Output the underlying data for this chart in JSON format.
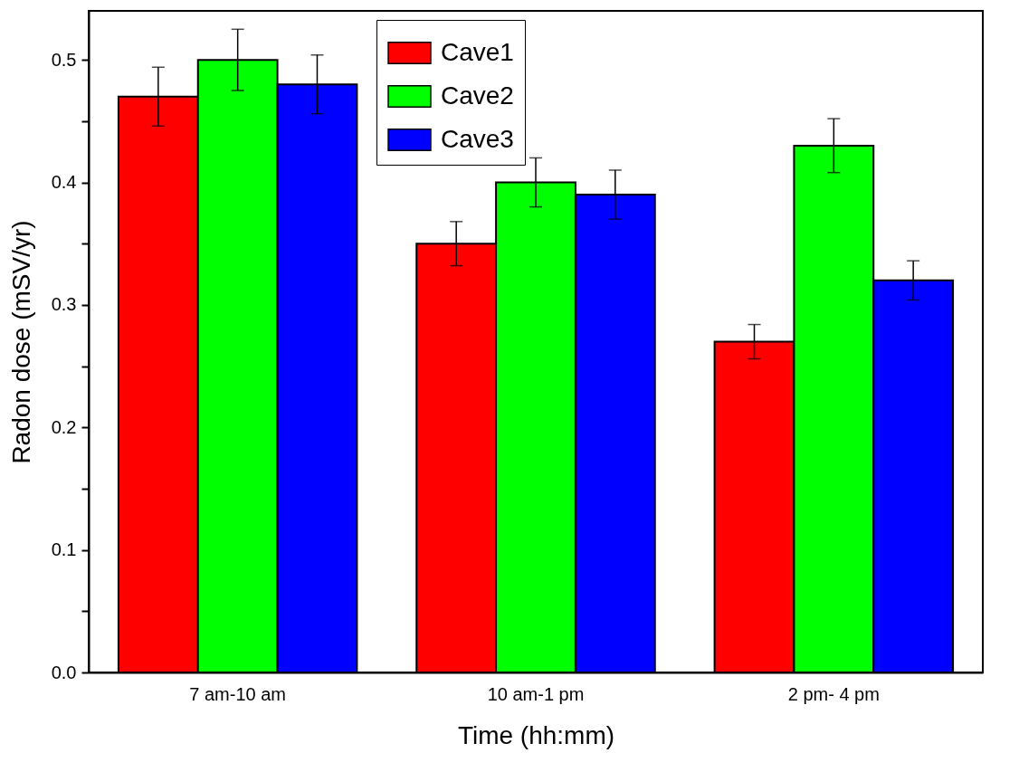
{
  "chart_data": {
    "type": "bar",
    "xlabel": "Time (hh:mm)",
    "ylabel": "Radon dose (mSV/yr)",
    "categories": [
      "7 am-10 am",
      "10 am-1 pm",
      "2 pm- 4 pm"
    ],
    "series": [
      {
        "name": "Cave1",
        "color": "#ff0000",
        "values": [
          0.47,
          0.35,
          0.27
        ],
        "errors": [
          0.024,
          0.018,
          0.014
        ]
      },
      {
        "name": "Cave2",
        "color": "#00ff00",
        "values": [
          0.5,
          0.4,
          0.43
        ],
        "errors": [
          0.025,
          0.02,
          0.022
        ]
      },
      {
        "name": "Cave3",
        "color": "#0000ff",
        "values": [
          0.48,
          0.39,
          0.32
        ],
        "errors": [
          0.024,
          0.02,
          0.016
        ]
      }
    ],
    "ylim": [
      0,
      0.54
    ],
    "yticks": [
      {
        "value": 0,
        "label": "0.0"
      },
      {
        "value": 0.05,
        "label": null
      },
      0.1,
      {
        "value": 0.15,
        "label": null
      },
      0.2,
      {
        "value": 0.25,
        "label": null
      },
      0.3,
      {
        "value": 0.35,
        "label": null
      },
      0.4,
      {
        "value": 0.45,
        "label": null
      },
      0.5
    ],
    "grid": false,
    "legend": "top"
  }
}
